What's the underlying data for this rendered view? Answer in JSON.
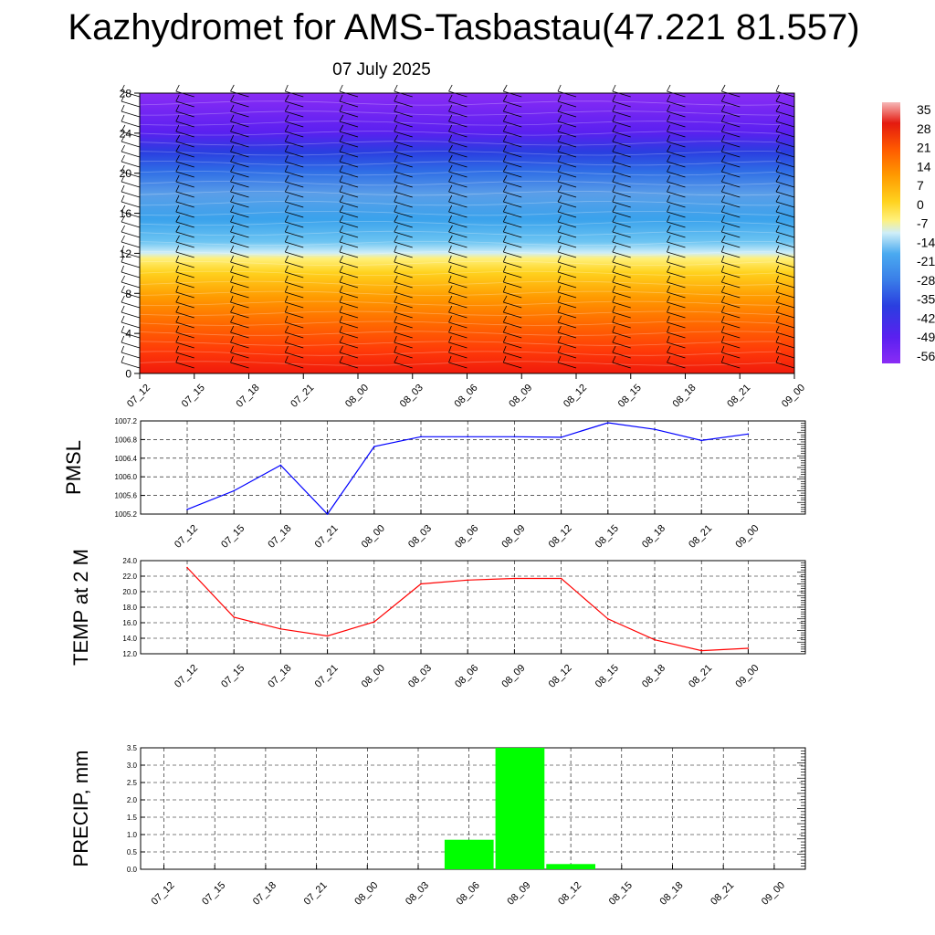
{
  "header": {
    "title": "Kazhydromet for AMS-Tasbastau(47.221 81.557)",
    "subtitle": "07 July 2025"
  },
  "chart_data": [
    {
      "type": "heatmap",
      "name": "temperature-wind-profile",
      "title": "",
      "x_categories": [
        "07_12",
        "07_15",
        "07_18",
        "07_21",
        "08_00",
        "08_03",
        "08_06",
        "08_09",
        "08_12",
        "08_15",
        "08_18",
        "08_21",
        "09_00"
      ],
      "y_ticks": [
        0,
        4,
        8,
        12,
        16,
        20,
        24,
        28
      ],
      "ylim": [
        0,
        28
      ],
      "colorbar_labels": [
        "35",
        "28",
        "21",
        "14",
        "7",
        "0",
        "-7",
        "-14",
        "-21",
        "-28",
        "-35",
        "-42",
        "-49",
        "-56"
      ],
      "colors": {
        "hot": "#e41a0f",
        "warm": "#ff8a00",
        "mild": "#ffd41a",
        "cold": "#6eb9ef",
        "cool": "#2a6ae6",
        "frigid": "#7a1df5"
      }
    },
    {
      "type": "line",
      "name": "pmsl",
      "ylabel": "PMSL",
      "x_categories": [
        "07_12",
        "07_15",
        "07_18",
        "07_21",
        "08_00",
        "08_03",
        "08_06",
        "08_09",
        "08_12",
        "08_15",
        "08_18",
        "08_21",
        "09_00"
      ],
      "values": [
        1005.3,
        1005.7,
        1006.25,
        1005.2,
        1006.65,
        1006.86,
        1006.86,
        1006.86,
        1006.85,
        1007.16,
        1007.02,
        1006.78,
        1006.92
      ],
      "ylim": [
        1005.2,
        1007.2
      ],
      "y_ticks": [
        "1005.2",
        "1005.6",
        "1006.0",
        "1006.4",
        "1006.8",
        "1007.2"
      ],
      "color": "#0000ff"
    },
    {
      "type": "line",
      "name": "temp-2m",
      "ylabel": "TEMP at 2 M",
      "x_categories": [
        "07_12",
        "07_15",
        "07_18",
        "07_21",
        "08_00",
        "08_03",
        "08_06",
        "08_09",
        "08_12",
        "08_15",
        "08_18",
        "08_21",
        "09_00"
      ],
      "values": [
        23.1,
        16.7,
        15.2,
        14.3,
        16.1,
        21.0,
        21.5,
        21.7,
        21.7,
        16.5,
        13.8,
        12.4,
        12.7
      ],
      "ylim": [
        12.0,
        24.0
      ],
      "y_ticks": [
        "12.0",
        "14.0",
        "16.0",
        "18.0",
        "20.0",
        "22.0",
        "24.0"
      ],
      "color": "#ff0000"
    },
    {
      "type": "bar",
      "name": "precip",
      "ylabel": "PRECIP, mm",
      "categories": [
        "07_12",
        "07_15",
        "07_18",
        "07_21",
        "08_00",
        "08_03",
        "08_06",
        "08_09",
        "08_12",
        "08_15",
        "08_18",
        "08_21",
        "09_00"
      ],
      "values": [
        0,
        0,
        0,
        0,
        0,
        0,
        0.85,
        3.5,
        0.15,
        0,
        0,
        0,
        0
      ],
      "ylim": [
        0,
        3.5
      ],
      "y_ticks": [
        "0.0",
        "0.5",
        "1.0",
        "1.5",
        "2.0",
        "2.5",
        "3.0",
        "3.5"
      ],
      "color": "#00ff00"
    }
  ]
}
